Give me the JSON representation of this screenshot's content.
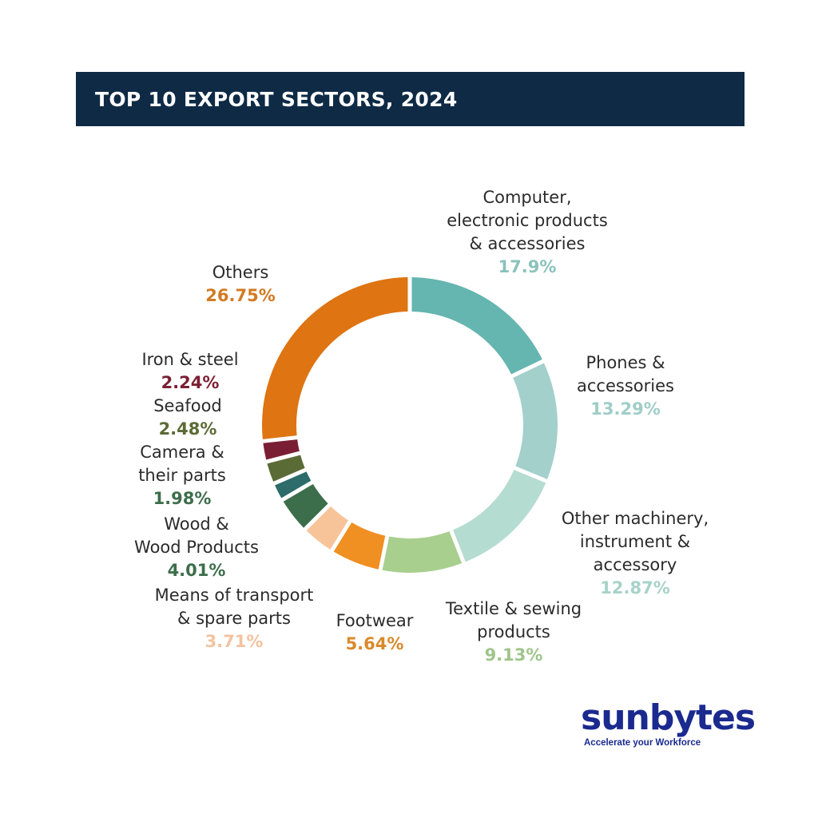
{
  "header": {
    "title": "TOP 10 EXPORT SECTORS, 2024"
  },
  "chart_data": {
    "type": "pie",
    "variant": "donut",
    "title": "TOP 10 EXPORT SECTORS, 2024",
    "categories": [
      "Computer, electronic products & accessories",
      "Phones & accessories",
      "Other machinery, instrument & accessory",
      "Textile & sewing products",
      "Footwear",
      "Means of transport & spare parts",
      "Wood & Wood Products",
      "Camera & their parts",
      "Seafood",
      "Iron & steel",
      "Others"
    ],
    "values": [
      17.9,
      13.29,
      12.87,
      9.13,
      5.64,
      3.71,
      4.01,
      1.98,
      2.48,
      2.24,
      26.75
    ],
    "value_labels": [
      "17.9%",
      "13.29%",
      "12.87%",
      "9.13%",
      "5.64%",
      "3.71%",
      "4.01%",
      "1.98%",
      "2.48%",
      "2.24%",
      "26.75%"
    ],
    "label_lines": [
      [
        "Computer,",
        "electronic products",
        "& accessories"
      ],
      [
        "Phones &",
        "accessories"
      ],
      [
        "Other machinery,",
        "instrument &",
        "accessory"
      ],
      [
        "Textile & sewing",
        "products"
      ],
      [
        "Footwear"
      ],
      [
        "Means of transport",
        "& spare parts"
      ],
      [
        "Wood &",
        "Wood Products"
      ],
      [
        "Camera &",
        "their parts"
      ],
      [
        "Seafood"
      ],
      [
        "Iron & steel"
      ],
      [
        "Others"
      ]
    ],
    "colors": [
      "#65b5b0",
      "#a3d0cb",
      "#b5dcd0",
      "#a8cf8e",
      "#f08f22",
      "#f7c49a",
      "#3d6e4b",
      "#2e6b6b",
      "#5b6b35",
      "#7a1f33",
      "#de7412"
    ],
    "label_colors": [
      "#8cc2bc",
      "#9fcdc7",
      "#a7d2c8",
      "#9fc58a",
      "#d98a2a",
      "#f2c3a0",
      "#3d6e4b",
      "#3d6e4b",
      "#5b6b35",
      "#7a1f33",
      "#d27a22"
    ],
    "legend": "none"
  },
  "branding": {
    "logo_text": "sunbytes",
    "tagline": "Accelerate your Workforce"
  }
}
